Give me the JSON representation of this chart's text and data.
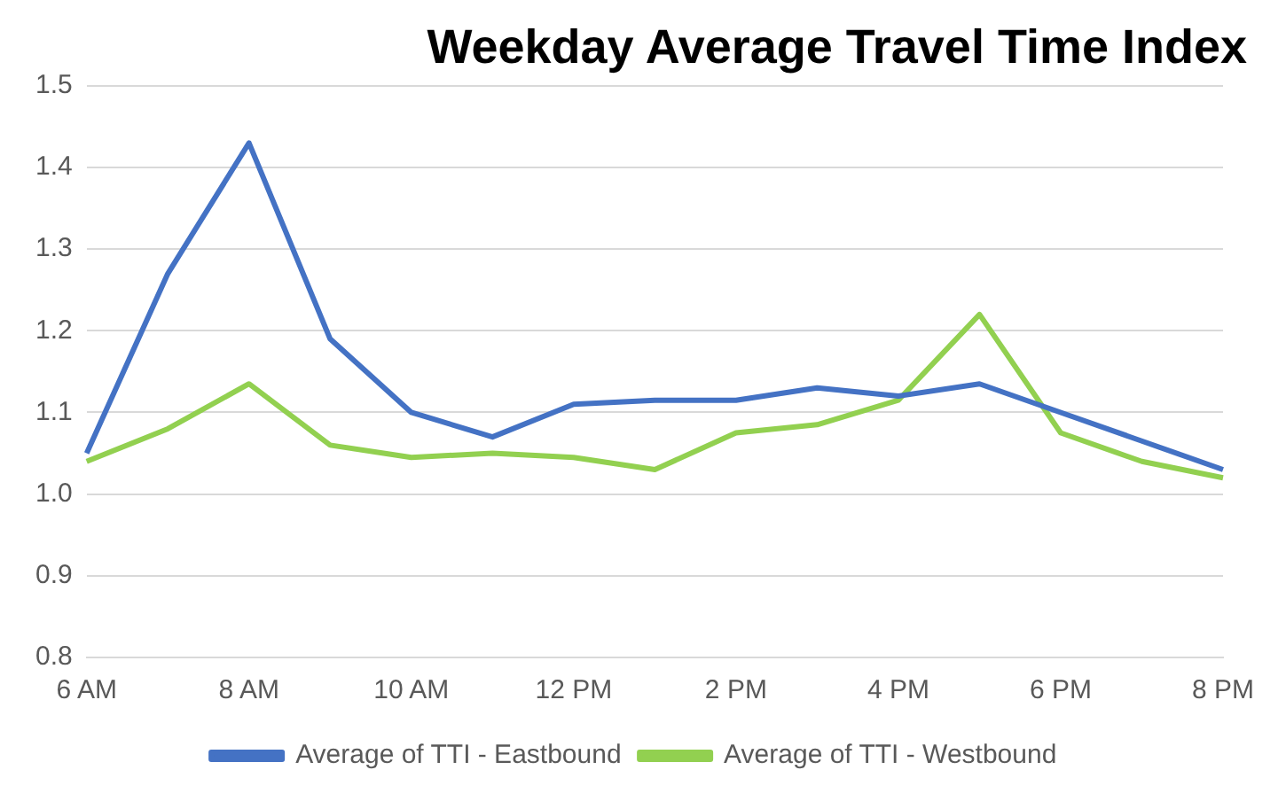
{
  "chart_data": {
    "type": "line",
    "title": "Weekday Average Travel Time Index",
    "categories": [
      "6 AM",
      null,
      "8 AM",
      null,
      "10 AM",
      null,
      "12 PM",
      null,
      "2 PM",
      null,
      "4 PM",
      null,
      "6 PM",
      null,
      "8 PM"
    ],
    "series": [
      {
        "name": "Average of TTI - Eastbound",
        "color": "#4472c4",
        "values": [
          1.05,
          1.27,
          1.43,
          1.19,
          1.1,
          1.07,
          1.11,
          1.115,
          1.115,
          1.13,
          1.12,
          1.135,
          1.1,
          1.065,
          1.03
        ]
      },
      {
        "name": "Average of TTI - Westbound",
        "color": "#92d050",
        "values": [
          1.04,
          1.08,
          1.135,
          1.06,
          1.045,
          1.05,
          1.045,
          1.03,
          1.075,
          1.085,
          1.115,
          1.22,
          1.075,
          1.04,
          1.02
        ]
      }
    ],
    "ylim": [
      0.8,
      1.5
    ],
    "yticks": [
      0.8,
      0.9,
      {
        "value": 1,
        "label": "1.0"
      },
      1.1,
      1.2,
      1.3,
      1.4,
      1.5
    ],
    "grid": "y",
    "legend": "bottom",
    "marker": "none",
    "line_style": "solid"
  }
}
